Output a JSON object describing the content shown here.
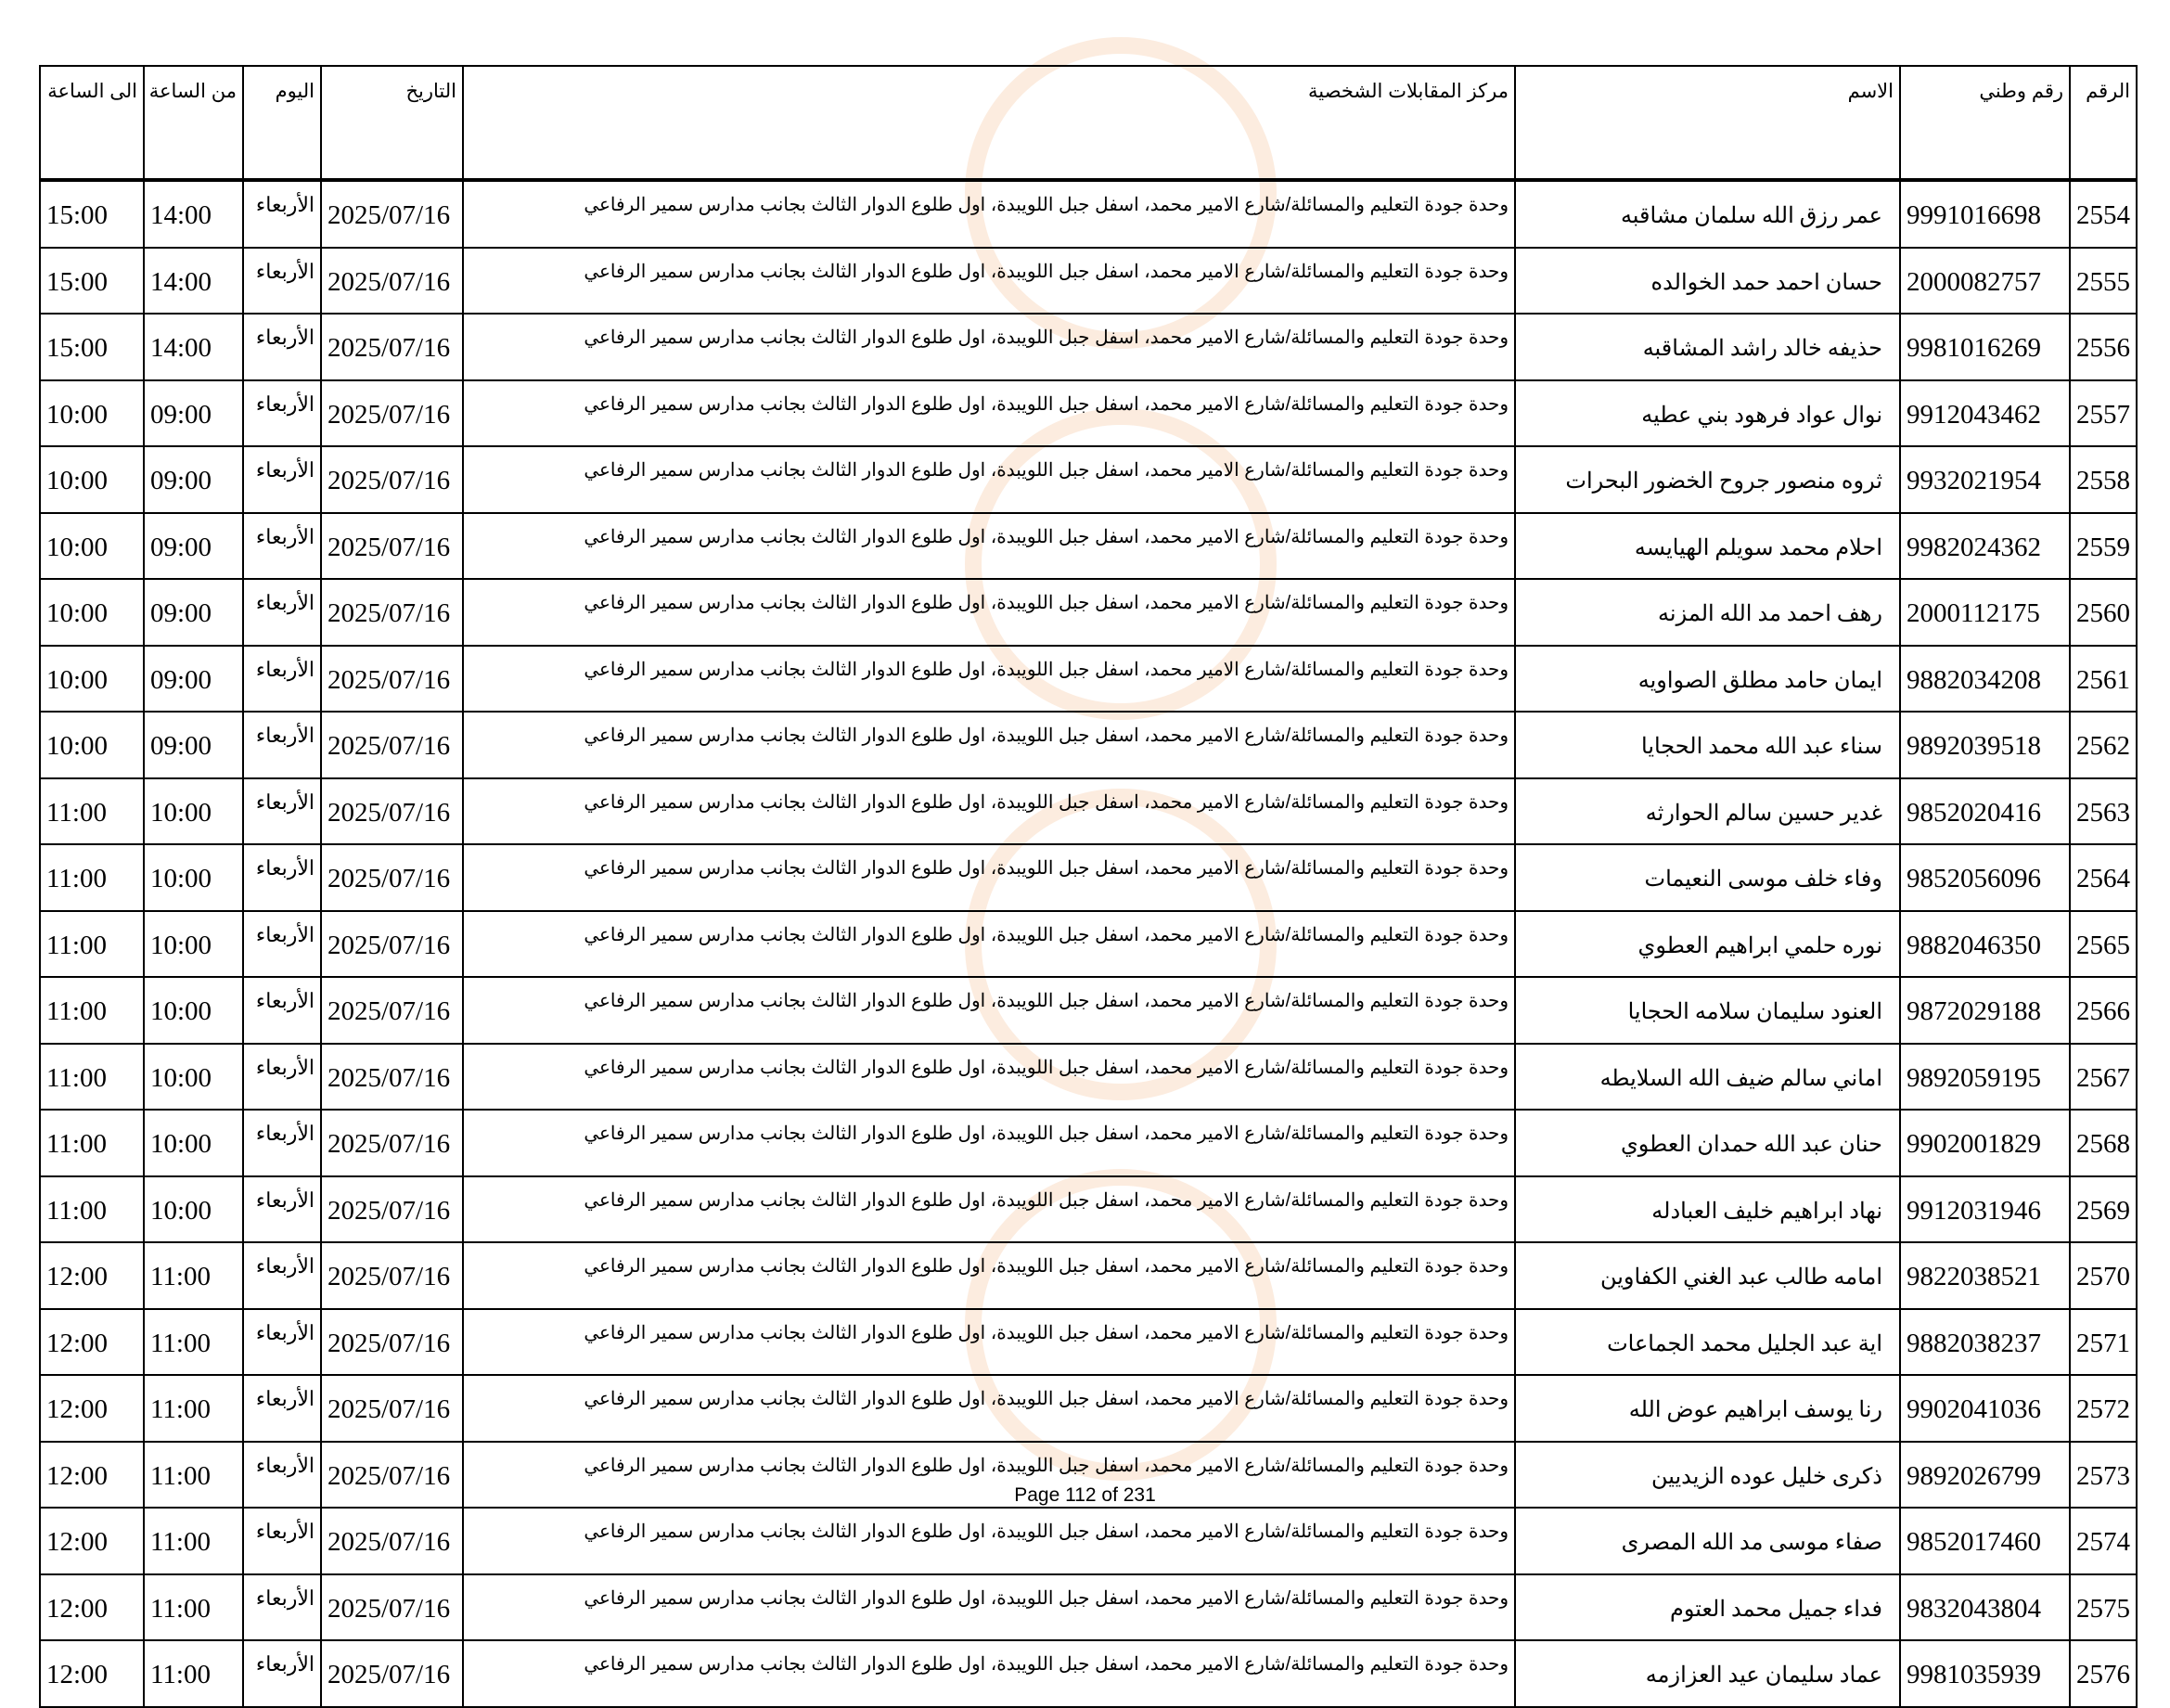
{
  "headers": {
    "row_no": "الرقم",
    "national_id": "رقم وطني",
    "name": "الاسم",
    "center": "مركز المقابلات الشخصية",
    "date": "التاريخ",
    "day": "اليوم",
    "from": "من الساعة",
    "to": "الى الساعة"
  },
  "shared": {
    "center": "وحدة جودة التعليم والمسائلة/شارع الامير محمد، اسفل جبل اللويبدة، اول طلوع الدوار الثالث بجانب مدارس سمير الرفاعي",
    "date": "2025/07/16",
    "day": "الأربعاء"
  },
  "rows": [
    {
      "no": "2554",
      "id": "9991016698",
      "name": "عمر رزق الله سلمان مشاقبه",
      "from": "14:00",
      "to": "15:00"
    },
    {
      "no": "2555",
      "id": "2000082757",
      "name": "حسان احمد حمد الخوالده",
      "from": "14:00",
      "to": "15:00"
    },
    {
      "no": "2556",
      "id": "9981016269",
      "name": "حذيفه خالد راشد المشاقبه",
      "from": "14:00",
      "to": "15:00"
    },
    {
      "no": "2557",
      "id": "9912043462",
      "name": "نوال عواد فرهود بني عطيه",
      "from": "09:00",
      "to": "10:00"
    },
    {
      "no": "2558",
      "id": "9932021954",
      "name": "ثروه منصور جروح الخضور البحرات",
      "from": "09:00",
      "to": "10:00"
    },
    {
      "no": "2559",
      "id": "9982024362",
      "name": "احلام محمد سويلم الهيايسه",
      "from": "09:00",
      "to": "10:00"
    },
    {
      "no": "2560",
      "id": "2000112175",
      "name": "رهف احمد مد الله المزنه",
      "from": "09:00",
      "to": "10:00"
    },
    {
      "no": "2561",
      "id": "9882034208",
      "name": "ايمان حامد مطلق الصواويه",
      "from": "09:00",
      "to": "10:00"
    },
    {
      "no": "2562",
      "id": "9892039518",
      "name": "سناء عبد الله محمد الحجايا",
      "from": "09:00",
      "to": "10:00"
    },
    {
      "no": "2563",
      "id": "9852020416",
      "name": "غدير حسين سالم الحوارثه",
      "from": "10:00",
      "to": "11:00"
    },
    {
      "no": "2564",
      "id": "9852056096",
      "name": "وفاء خلف موسى النعيمات",
      "from": "10:00",
      "to": "11:00"
    },
    {
      "no": "2565",
      "id": "9882046350",
      "name": "نوره حلمي ابراهيم العطوي",
      "from": "10:00",
      "to": "11:00"
    },
    {
      "no": "2566",
      "id": "9872029188",
      "name": "العنود سليمان سلامه الحجايا",
      "from": "10:00",
      "to": "11:00"
    },
    {
      "no": "2567",
      "id": "9892059195",
      "name": "اماني سالم ضيف الله السلايطه",
      "from": "10:00",
      "to": "11:00"
    },
    {
      "no": "2568",
      "id": "9902001829",
      "name": "حنان عبد الله حمدان العطوي",
      "from": "10:00",
      "to": "11:00"
    },
    {
      "no": "2569",
      "id": "9912031946",
      "name": "نهاد ابراهيم خليف العبادله",
      "from": "10:00",
      "to": "11:00"
    },
    {
      "no": "2570",
      "id": "9822038521",
      "name": "امامه طالب عبد الغني الكفاوين",
      "from": "11:00",
      "to": "12:00"
    },
    {
      "no": "2571",
      "id": "9882038237",
      "name": "اية عبد الجليل محمد الجماعات",
      "from": "11:00",
      "to": "12:00"
    },
    {
      "no": "2572",
      "id": "9902041036",
      "name": "رنا يوسف ابراهيم عوض  الله",
      "from": "11:00",
      "to": "12:00"
    },
    {
      "no": "2573",
      "id": "9892026799",
      "name": "ذكرى خليل عوده الزيديين",
      "from": "11:00",
      "to": "12:00"
    },
    {
      "no": "2574",
      "id": "9852017460",
      "name": "صفاء موسى مد الله المصرى",
      "from": "11:00",
      "to": "12:00"
    },
    {
      "no": "2575",
      "id": "9832043804",
      "name": "فداء جميل محمد العتوم",
      "from": "11:00",
      "to": "12:00"
    },
    {
      "no": "2576",
      "id": "9981035939",
      "name": "عماد سليمان عيد العزازمه",
      "from": "11:00",
      "to": "12:00"
    }
  ],
  "footer": "Page 112 of 231",
  "watermark_color": "#f0a060"
}
